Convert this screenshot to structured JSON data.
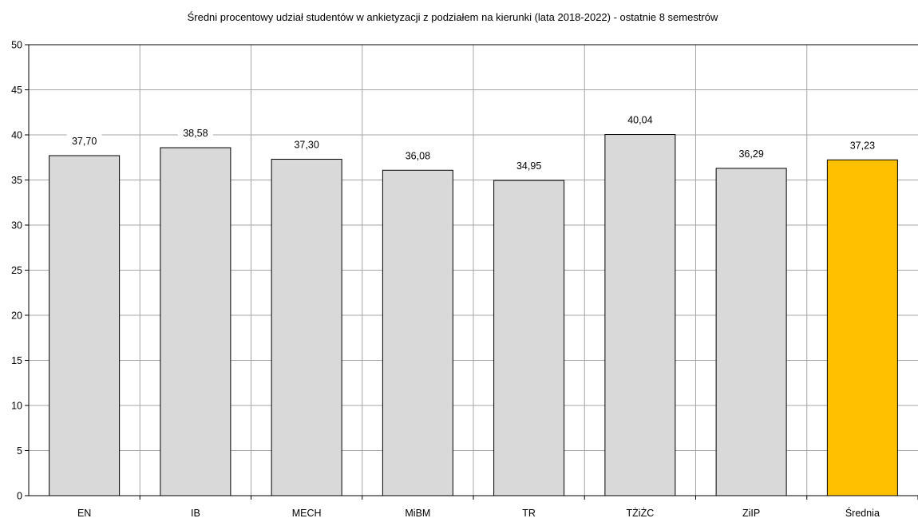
{
  "chart_data": {
    "type": "bar",
    "title": "Średni procentowy udział studentów w ankietyzacji z podziałem na kierunki (lata 2018-2022)  - ostatnie 8 semestrów",
    "xlabel": "",
    "ylabel": "",
    "categories": [
      "EN",
      "IB",
      "MECH",
      "MiBM",
      "TR",
      "TŻiŻC",
      "ZiIP",
      "Średnia"
    ],
    "values": [
      37.7,
      38.58,
      37.3,
      36.08,
      34.95,
      40.04,
      36.29,
      37.23
    ],
    "value_labels": [
      "37,70",
      "38,58",
      "37,30",
      "36,08",
      "34,95",
      "40,04",
      "36,29",
      "37,23"
    ],
    "ylim": [
      0,
      50
    ],
    "yticks": [
      0,
      5,
      10,
      15,
      20,
      25,
      30,
      35,
      40,
      45,
      50
    ],
    "grid": true,
    "legend": "none",
    "colors": {
      "bar": "#d9d9d9",
      "highlight_bar": "#ffc000",
      "bar_border": "#000000",
      "grid": "#a6a6a6",
      "axis": "#000000"
    },
    "highlight_category": "Średnia"
  }
}
